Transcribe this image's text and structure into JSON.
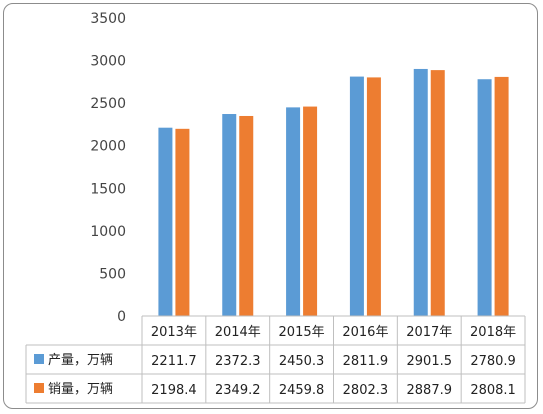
{
  "chart_data": {
    "type": "bar",
    "categories": [
      "2013年",
      "2014年",
      "2015年",
      "2016年",
      "2017年",
      "2018年"
    ],
    "series": [
      {
        "name": "产量，万辆",
        "color": "#5b9bd5",
        "values": [
          2211.7,
          2372.3,
          2450.3,
          2811.9,
          2901.5,
          2780.9
        ]
      },
      {
        "name": "销量，万辆",
        "color": "#ed7d31",
        "values": [
          2198.4,
          2349.2,
          2459.8,
          2802.3,
          2887.9,
          2808.1
        ]
      }
    ],
    "ylim": [
      0,
      3500
    ],
    "yticks": [
      0,
      500,
      1000,
      1500,
      2000,
      2500,
      3000,
      3500
    ],
    "grid": false,
    "legend": "data-table"
  }
}
